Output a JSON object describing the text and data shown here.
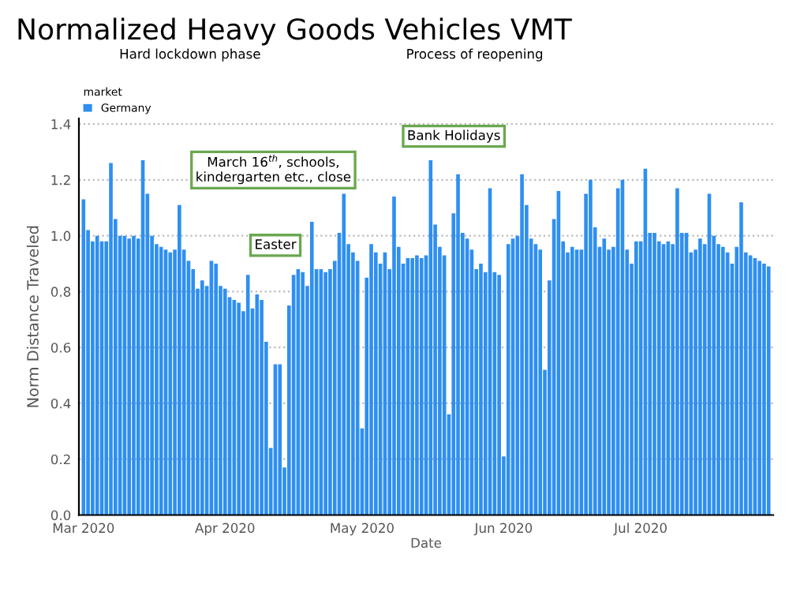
{
  "chart_data": {
    "type": "bar",
    "title": "Normalized Heavy Goods Vehicles VMT",
    "xlabel": "Date",
    "ylabel": "Norm Distance Traveled",
    "legend_title": "market",
    "legend": "top left",
    "grid": "y",
    "x": [
      "2020-03-01",
      "2020-03-02",
      "2020-03-03",
      "2020-03-04",
      "2020-03-05",
      "2020-03-06",
      "2020-03-07",
      "2020-03-08",
      "2020-03-09",
      "2020-03-10",
      "2020-03-11",
      "2020-03-12",
      "2020-03-13",
      "2020-03-14",
      "2020-03-15",
      "2020-03-16",
      "2020-03-17",
      "2020-03-18",
      "2020-03-19",
      "2020-03-20",
      "2020-03-21",
      "2020-03-22",
      "2020-03-23",
      "2020-03-24",
      "2020-03-25",
      "2020-03-26",
      "2020-03-27",
      "2020-03-28",
      "2020-03-29",
      "2020-03-30",
      "2020-03-31",
      "2020-04-01",
      "2020-04-02",
      "2020-04-03",
      "2020-04-04",
      "2020-04-05",
      "2020-04-06",
      "2020-04-07",
      "2020-04-08",
      "2020-04-09",
      "2020-04-10",
      "2020-04-11",
      "2020-04-12",
      "2020-04-13",
      "2020-04-14",
      "2020-04-15",
      "2020-04-16",
      "2020-04-17",
      "2020-04-18",
      "2020-04-19",
      "2020-04-20",
      "2020-04-21",
      "2020-04-22",
      "2020-04-23",
      "2020-04-24",
      "2020-04-25",
      "2020-04-26",
      "2020-04-27",
      "2020-04-28",
      "2020-04-29",
      "2020-04-30",
      "2020-05-01",
      "2020-05-02",
      "2020-05-03",
      "2020-05-04",
      "2020-05-05",
      "2020-05-06",
      "2020-05-07",
      "2020-05-08",
      "2020-05-09",
      "2020-05-10",
      "2020-05-11",
      "2020-05-12",
      "2020-05-13",
      "2020-05-14",
      "2020-05-15",
      "2020-05-16",
      "2020-05-17",
      "2020-05-18",
      "2020-05-19",
      "2020-05-20",
      "2020-05-21",
      "2020-05-22",
      "2020-05-23",
      "2020-05-24",
      "2020-05-25",
      "2020-05-26",
      "2020-05-27",
      "2020-05-28",
      "2020-05-29",
      "2020-05-30",
      "2020-05-31",
      "2020-06-01",
      "2020-06-02",
      "2020-06-03",
      "2020-06-04",
      "2020-06-05",
      "2020-06-06",
      "2020-06-07",
      "2020-06-08",
      "2020-06-09",
      "2020-06-10",
      "2020-06-11",
      "2020-06-12",
      "2020-06-13",
      "2020-06-14",
      "2020-06-15",
      "2020-06-16",
      "2020-06-17",
      "2020-06-18",
      "2020-06-19",
      "2020-06-20",
      "2020-06-21",
      "2020-06-22",
      "2020-06-23",
      "2020-06-24",
      "2020-06-25",
      "2020-06-26",
      "2020-06-27",
      "2020-06-28",
      "2020-06-29",
      "2020-06-30",
      "2020-07-01",
      "2020-07-02",
      "2020-07-03",
      "2020-07-04",
      "2020-07-05",
      "2020-07-06",
      "2020-07-07",
      "2020-07-08",
      "2020-07-09",
      "2020-07-10",
      "2020-07-11",
      "2020-07-12",
      "2020-07-13",
      "2020-07-14",
      "2020-07-15",
      "2020-07-16",
      "2020-07-17",
      "2020-07-18",
      "2020-07-19",
      "2020-07-20",
      "2020-07-21",
      "2020-07-22",
      "2020-07-23",
      "2020-07-24",
      "2020-07-25",
      "2020-07-26",
      "2020-07-27",
      "2020-07-28",
      "2020-07-29"
    ],
    "series": [
      {
        "name": "Germany",
        "color": "#2e8ff0",
        "values": [
          1.13,
          1.02,
          0.98,
          1.0,
          0.98,
          0.98,
          1.26,
          1.06,
          1.0,
          1.0,
          0.99,
          1.0,
          0.99,
          1.27,
          1.15,
          1.0,
          0.97,
          0.96,
          0.95,
          0.94,
          0.95,
          1.11,
          0.95,
          0.91,
          0.88,
          0.81,
          0.84,
          0.82,
          0.91,
          0.9,
          0.82,
          0.81,
          0.78,
          0.77,
          0.76,
          0.73,
          0.86,
          0.74,
          0.79,
          0.77,
          0.62,
          0.24,
          0.54,
          0.54,
          0.17,
          0.75,
          0.86,
          0.88,
          0.87,
          0.82,
          1.05,
          0.88,
          0.88,
          0.87,
          0.88,
          0.91,
          1.01,
          1.15,
          0.97,
          0.94,
          0.91,
          0.31,
          0.85,
          0.97,
          0.94,
          0.9,
          0.94,
          0.88,
          1.14,
          0.96,
          0.9,
          0.92,
          0.92,
          0.93,
          0.92,
          0.93,
          1.27,
          1.04,
          0.96,
          0.93,
          0.36,
          1.08,
          1.22,
          1.01,
          0.99,
          0.95,
          0.88,
          0.9,
          0.87,
          1.17,
          0.87,
          0.86,
          0.21,
          0.97,
          0.99,
          1.0,
          1.22,
          1.11,
          0.99,
          0.97,
          0.95,
          0.52,
          0.84,
          1.06,
          1.16,
          0.98,
          0.94,
          0.96,
          0.95,
          0.95,
          1.15,
          1.2,
          1.03,
          0.96,
          0.99,
          0.95,
          0.96,
          1.17,
          1.2,
          0.95,
          0.9,
          0.98,
          0.98,
          1.24,
          1.01,
          1.01,
          0.98,
          0.97,
          0.98,
          0.97,
          1.17,
          1.01,
          1.01,
          0.94,
          0.95,
          0.99,
          0.97,
          1.15,
          1.0,
          0.97,
          0.96,
          0.94,
          0.9,
          0.96,
          1.12,
          0.94,
          0.93,
          0.92,
          0.91,
          0.9,
          0.89
        ]
      }
    ],
    "xlim": [
      "2020-02-29",
      "2020-07-30"
    ],
    "xticks": [
      {
        "value": "2020-03-01",
        "label": "Mar 2020"
      },
      {
        "value": "2020-04-01",
        "label": "Apr 2020"
      },
      {
        "value": "2020-05-01",
        "label": "May 2020"
      },
      {
        "value": "2020-06-01",
        "label": "Jun 2020"
      },
      {
        "value": "2020-07-01",
        "label": "Jul 2020"
      }
    ],
    "ylim": [
      0,
      1.42
    ],
    "yticks": [
      {
        "value": 0,
        "label": "0.0"
      },
      {
        "value": 0.2,
        "label": "0.2"
      },
      {
        "value": 0.4,
        "label": "0.4"
      },
      {
        "value": 0.6,
        "label": "0.6"
      },
      {
        "value": 0.8,
        "label": "0.8"
      },
      {
        "value": 1.0,
        "label": "1.0"
      },
      {
        "value": 1.2,
        "label": "1.2"
      },
      {
        "value": 1.4,
        "label": "1.4"
      }
    ],
    "annotations": [
      "Hard lockdown phase",
      "Process of reopening",
      "March 16$^{th}$, schools,\nkindergarten etc., close",
      "Easter",
      "Bank Holidays"
    ]
  }
}
